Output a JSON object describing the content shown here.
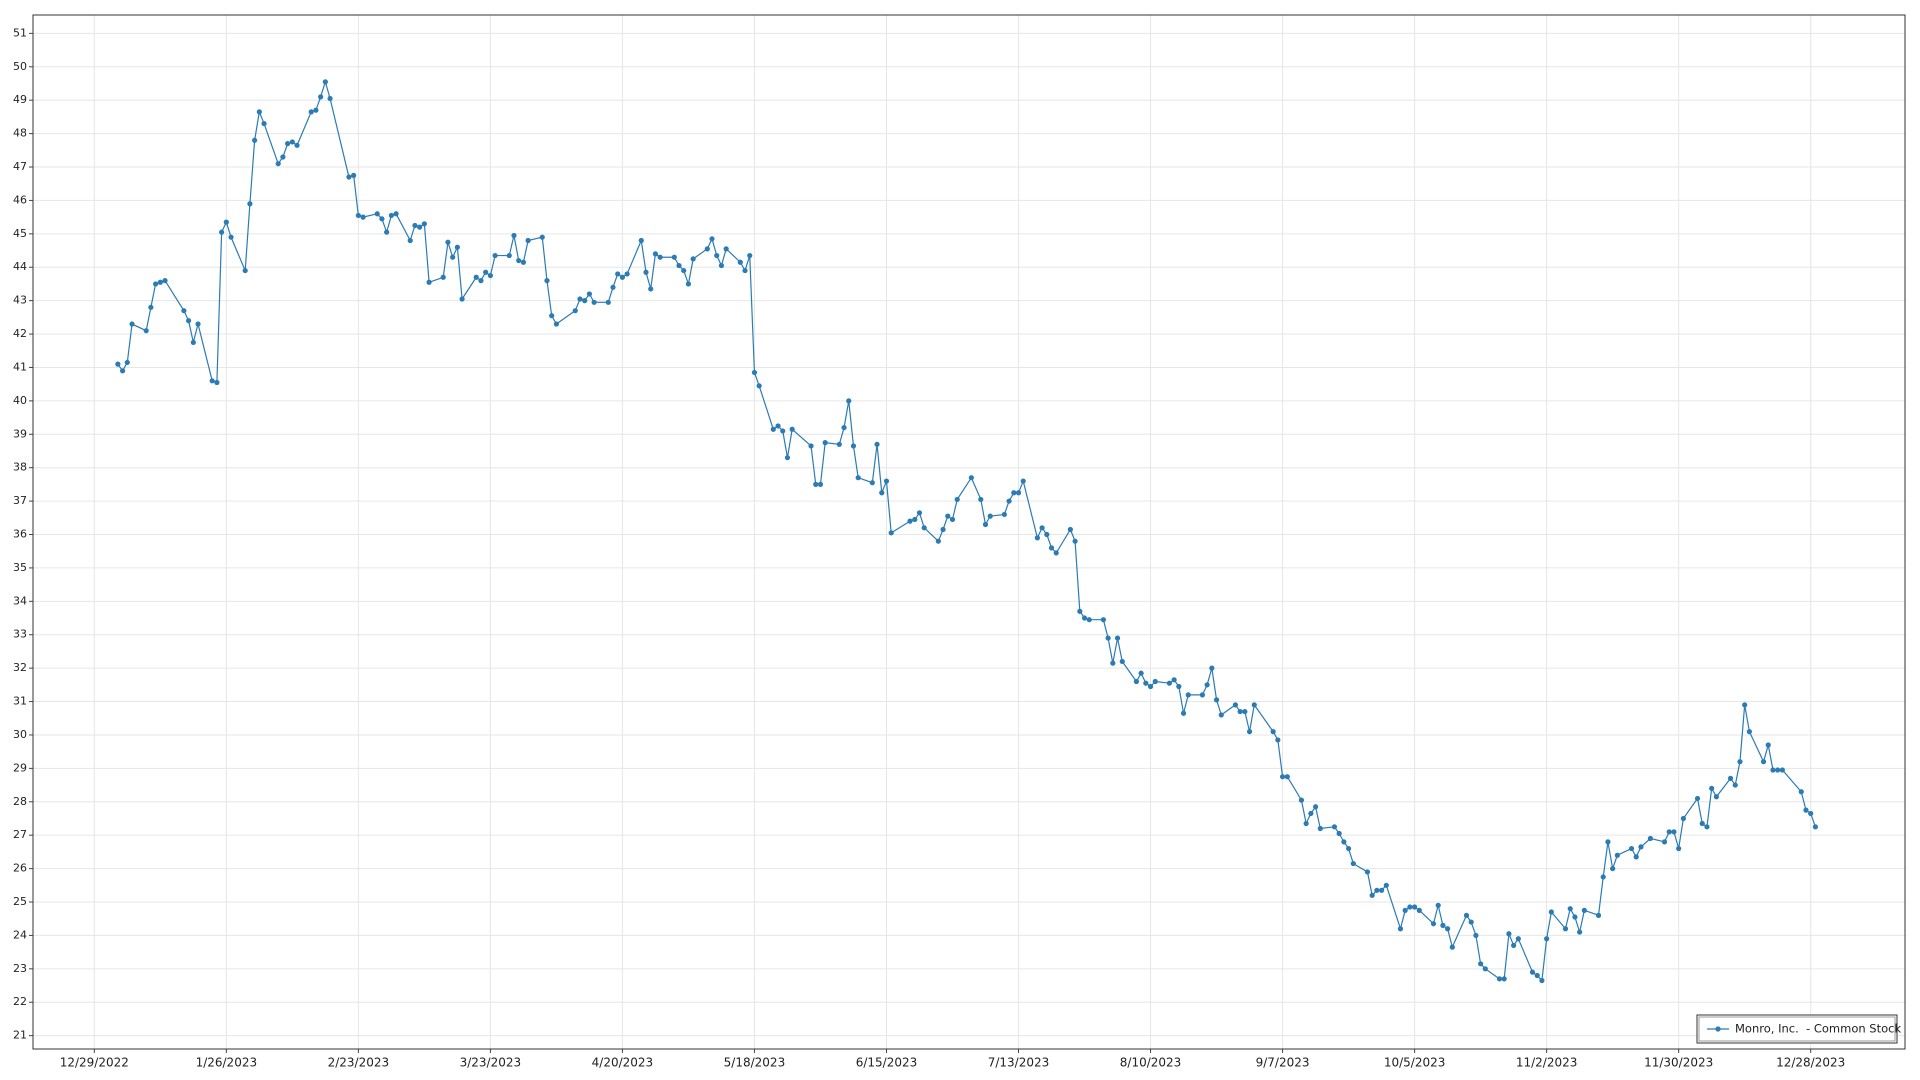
{
  "chart_data": {
    "type": "line",
    "x": [
      "2023-01-03",
      "2023-01-04",
      "2023-01-05",
      "2023-01-06",
      "2023-01-09",
      "2023-01-10",
      "2023-01-11",
      "2023-01-12",
      "2023-01-13",
      "2023-01-17",
      "2023-01-18",
      "2023-01-19",
      "2023-01-20",
      "2023-01-23",
      "2023-01-24",
      "2023-01-25",
      "2023-01-26",
      "2023-01-27",
      "2023-01-30",
      "2023-01-31",
      "2023-02-01",
      "2023-02-02",
      "2023-02-03",
      "2023-02-06",
      "2023-02-07",
      "2023-02-08",
      "2023-02-09",
      "2023-02-10",
      "2023-02-13",
      "2023-02-14",
      "2023-02-15",
      "2023-02-16",
      "2023-02-17",
      "2023-02-21",
      "2023-02-22",
      "2023-02-23",
      "2023-02-24",
      "2023-02-27",
      "2023-02-28",
      "2023-03-01",
      "2023-03-02",
      "2023-03-03",
      "2023-03-06",
      "2023-03-07",
      "2023-03-08",
      "2023-03-09",
      "2023-03-10",
      "2023-03-13",
      "2023-03-14",
      "2023-03-15",
      "2023-03-16",
      "2023-03-17",
      "2023-03-20",
      "2023-03-21",
      "2023-03-22",
      "2023-03-23",
      "2023-03-24",
      "2023-03-27",
      "2023-03-28",
      "2023-03-29",
      "2023-03-30",
      "2023-03-31",
      "2023-04-03",
      "2023-04-04",
      "2023-04-05",
      "2023-04-06",
      "2023-04-10",
      "2023-04-11",
      "2023-04-12",
      "2023-04-13",
      "2023-04-14",
      "2023-04-17",
      "2023-04-18",
      "2023-04-19",
      "2023-04-20",
      "2023-04-21",
      "2023-04-24",
      "2023-04-25",
      "2023-04-26",
      "2023-04-27",
      "2023-04-28",
      "2023-05-01",
      "2023-05-02",
      "2023-05-03",
      "2023-05-04",
      "2023-05-05",
      "2023-05-08",
      "2023-05-09",
      "2023-05-10",
      "2023-05-11",
      "2023-05-12",
      "2023-05-15",
      "2023-05-16",
      "2023-05-17",
      "2023-05-18",
      "2023-05-19",
      "2023-05-22",
      "2023-05-23",
      "2023-05-24",
      "2023-05-25",
      "2023-05-26",
      "2023-05-30",
      "2023-05-31",
      "2023-06-01",
      "2023-06-02",
      "2023-06-05",
      "2023-06-06",
      "2023-06-07",
      "2023-06-08",
      "2023-06-09",
      "2023-06-12",
      "2023-06-13",
      "2023-06-14",
      "2023-06-15",
      "2023-06-16",
      "2023-06-20",
      "2023-06-21",
      "2023-06-22",
      "2023-06-23",
      "2023-06-26",
      "2023-06-27",
      "2023-06-28",
      "2023-06-29",
      "2023-06-30",
      "2023-07-03",
      "2023-07-05",
      "2023-07-06",
      "2023-07-07",
      "2023-07-10",
      "2023-07-11",
      "2023-07-12",
      "2023-07-13",
      "2023-07-14",
      "2023-07-17",
      "2023-07-18",
      "2023-07-19",
      "2023-07-20",
      "2023-07-21",
      "2023-07-24",
      "2023-07-25",
      "2023-07-26",
      "2023-07-27",
      "2023-07-28",
      "2023-07-31",
      "2023-08-01",
      "2023-08-02",
      "2023-08-03",
      "2023-08-04",
      "2023-08-07",
      "2023-08-08",
      "2023-08-09",
      "2023-08-10",
      "2023-08-11",
      "2023-08-14",
      "2023-08-15",
      "2023-08-16",
      "2023-08-17",
      "2023-08-18",
      "2023-08-21",
      "2023-08-22",
      "2023-08-23",
      "2023-08-24",
      "2023-08-25",
      "2023-08-28",
      "2023-08-29",
      "2023-08-30",
      "2023-08-31",
      "2023-09-01",
      "2023-09-05",
      "2023-09-06",
      "2023-09-07",
      "2023-09-08",
      "2023-09-11",
      "2023-09-12",
      "2023-09-13",
      "2023-09-14",
      "2023-09-15",
      "2023-09-18",
      "2023-09-19",
      "2023-09-20",
      "2023-09-21",
      "2023-09-22",
      "2023-09-25",
      "2023-09-26",
      "2023-09-27",
      "2023-09-28",
      "2023-09-29",
      "2023-10-02",
      "2023-10-03",
      "2023-10-04",
      "2023-10-05",
      "2023-10-06",
      "2023-10-09",
      "2023-10-10",
      "2023-10-11",
      "2023-10-12",
      "2023-10-13",
      "2023-10-16",
      "2023-10-17",
      "2023-10-18",
      "2023-10-19",
      "2023-10-20",
      "2023-10-23",
      "2023-10-24",
      "2023-10-25",
      "2023-10-26",
      "2023-10-27",
      "2023-10-30",
      "2023-10-31",
      "2023-11-01",
      "2023-11-02",
      "2023-11-03",
      "2023-11-06",
      "2023-11-07",
      "2023-11-08",
      "2023-11-09",
      "2023-11-10",
      "2023-11-13",
      "2023-11-14",
      "2023-11-15",
      "2023-11-16",
      "2023-11-17",
      "2023-11-20",
      "2023-11-21",
      "2023-11-22",
      "2023-11-24",
      "2023-11-27",
      "2023-11-28",
      "2023-11-29",
      "2023-11-30",
      "2023-12-01",
      "2023-12-04",
      "2023-12-05",
      "2023-12-06",
      "2023-12-07",
      "2023-12-08",
      "2023-12-11",
      "2023-12-12",
      "2023-12-13",
      "2023-12-14",
      "2023-12-15",
      "2023-12-18",
      "2023-12-19",
      "2023-12-20",
      "2023-12-21",
      "2023-12-22",
      "2023-12-26",
      "2023-12-27",
      "2023-12-28",
      "2023-12-29"
    ],
    "series": [
      {
        "name": "Monro, Inc.  - Common Stock",
        "color": "#2b7bb5",
        "values": [
          41.1,
          40.9,
          41.15,
          42.3,
          42.1,
          42.8,
          43.5,
          43.55,
          43.6,
          42.7,
          42.4,
          41.75,
          42.3,
          40.6,
          40.55,
          45.05,
          45.35,
          44.9,
          43.9,
          45.9,
          47.8,
          48.65,
          48.3,
          47.1,
          47.3,
          47.7,
          47.75,
          47.65,
          48.65,
          48.7,
          49.1,
          49.55,
          49.05,
          46.7,
          46.75,
          45.55,
          45.5,
          45.6,
          45.45,
          45.05,
          45.55,
          45.6,
          44.8,
          45.25,
          45.2,
          45.3,
          43.55,
          43.7,
          44.75,
          44.3,
          44.6,
          43.05,
          43.7,
          43.6,
          43.85,
          43.75,
          44.35,
          44.35,
          44.95,
          44.2,
          44.15,
          44.8,
          44.9,
          43.6,
          42.55,
          42.3,
          42.7,
          43.05,
          43.0,
          43.2,
          42.95,
          42.95,
          43.4,
          43.8,
          43.7,
          43.8,
          44.8,
          43.85,
          43.35,
          44.4,
          44.3,
          44.3,
          44.05,
          43.9,
          43.5,
          44.25,
          44.55,
          44.85,
          44.35,
          44.05,
          44.55,
          44.15,
          43.9,
          44.35,
          40.85,
          40.45,
          39.15,
          39.25,
          39.1,
          38.3,
          39.15,
          38.65,
          37.5,
          37.5,
          38.75,
          38.7,
          39.2,
          40.0,
          38.65,
          37.7,
          37.55,
          38.7,
          37.25,
          37.6,
          36.05,
          36.4,
          36.45,
          36.65,
          36.2,
          35.8,
          36.15,
          36.55,
          36.45,
          37.05,
          37.7,
          37.05,
          36.3,
          36.55,
          36.6,
          37.0,
          37.25,
          37.25,
          37.6,
          35.9,
          36.2,
          36.0,
          35.6,
          35.45,
          36.15,
          35.8,
          33.7,
          33.5,
          33.45,
          33.45,
          32.9,
          32.15,
          32.9,
          32.2,
          31.6,
          31.85,
          31.55,
          31.45,
          31.6,
          31.55,
          31.65,
          31.45,
          30.65,
          31.2,
          31.2,
          31.5,
          32.0,
          31.05,
          30.6,
          30.9,
          30.7,
          30.7,
          30.1,
          30.9,
          30.1,
          29.85,
          28.75,
          28.75,
          28.05,
          27.35,
          27.65,
          27.85,
          27.2,
          27.25,
          27.05,
          26.8,
          26.6,
          26.15,
          25.9,
          25.2,
          25.35,
          25.35,
          25.5,
          24.2,
          24.75,
          24.85,
          24.85,
          24.75,
          24.35,
          24.9,
          24.3,
          24.2,
          23.65,
          24.6,
          24.4,
          24.0,
          23.15,
          23.0,
          22.7,
          22.7,
          24.05,
          23.7,
          23.9,
          22.9,
          22.8,
          22.65,
          23.9,
          24.7,
          24.2,
          24.8,
          24.55,
          24.1,
          24.75,
          24.6,
          25.75,
          26.8,
          26.0,
          26.4,
          26.6,
          26.35,
          26.65,
          26.9,
          26.8,
          27.1,
          27.1,
          26.6,
          27.5,
          28.1,
          27.35,
          27.25,
          28.4,
          28.15,
          28.7,
          28.5,
          29.2,
          30.9,
          30.1,
          29.2,
          29.7,
          28.95,
          28.95,
          28.95,
          28.3,
          27.75,
          27.65,
          27.25
        ]
      }
    ],
    "xlim": [
      "2022-12-16",
      "2024-01-17"
    ],
    "xticks": [
      {
        "value": "2022-12-29",
        "label": "12/29/2022"
      },
      {
        "value": "2023-01-26",
        "label": "1/26/2023"
      },
      {
        "value": "2023-02-23",
        "label": "2/23/2023"
      },
      {
        "value": "2023-03-23",
        "label": "3/23/2023"
      },
      {
        "value": "2023-04-20",
        "label": "4/20/2023"
      },
      {
        "value": "2023-05-18",
        "label": "5/18/2023"
      },
      {
        "value": "2023-06-15",
        "label": "6/15/2023"
      },
      {
        "value": "2023-07-13",
        "label": "7/13/2023"
      },
      {
        "value": "2023-08-10",
        "label": "8/10/2023"
      },
      {
        "value": "2023-09-07",
        "label": "9/7/2023"
      },
      {
        "value": "2023-10-05",
        "label": "10/5/2023"
      },
      {
        "value": "2023-11-02",
        "label": "11/2/2023"
      },
      {
        "value": "2023-11-30",
        "label": "11/30/2023"
      },
      {
        "value": "2023-12-28",
        "label": "12/28/2023"
      }
    ],
    "ylim": [
      20.6,
      51.55
    ],
    "yticks": [
      21,
      22,
      23,
      24,
      25,
      26,
      27,
      28,
      29,
      30,
      31,
      32,
      33,
      34,
      35,
      36,
      37,
      38,
      39,
      40,
      41,
      42,
      43,
      44,
      45,
      46,
      47,
      48,
      49,
      50,
      51
    ],
    "grid": true,
    "legend": "lower right"
  }
}
